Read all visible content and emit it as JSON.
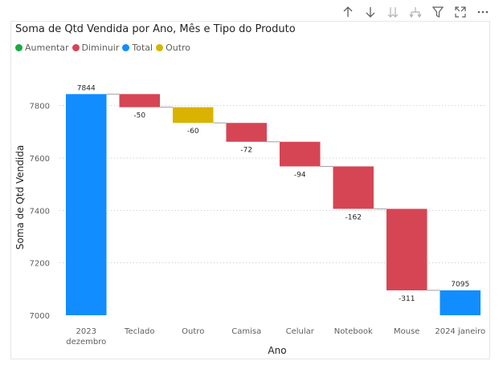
{
  "toolbar": {
    "icons": [
      "sort-up-icon",
      "sort-down-icon",
      "expand-all-down-icon",
      "drill-down-icon",
      "filter-icon",
      "focus-mode-icon",
      "more-options-icon"
    ]
  },
  "colors": {
    "increase": "#1aab40",
    "decrease": "#d64554",
    "total": "#118dff",
    "other": "#d9b300"
  },
  "chart_data": {
    "type": "waterfall",
    "title": "Soma de Qtd Vendida por Ano, Mês e Tipo do Produto",
    "xlabel": "Ano",
    "ylabel": "Soma de Qtd Vendida",
    "ylim": [
      7000,
      7900
    ],
    "yticks": [
      "7000",
      "7200",
      "7400",
      "7600",
      "7800"
    ],
    "grid": true,
    "legend_position": "top-left",
    "legend": [
      {
        "label": "Aumentar",
        "kind": "increase"
      },
      {
        "label": "Diminuir",
        "kind": "decrease"
      },
      {
        "label": "Total",
        "kind": "total"
      },
      {
        "label": "Outro",
        "kind": "other"
      }
    ],
    "categories": [
      "2023 dezembro",
      "Teclado",
      "Outro",
      "Camisa",
      "Celular",
      "Notebook",
      "Mouse",
      "2024 janeiro"
    ],
    "values": [
      7844,
      -50,
      -60,
      -72,
      -94,
      -162,
      -311,
      7095
    ],
    "labels": [
      "7844",
      "-50",
      "-60",
      "-72",
      "-94",
      "-162",
      "-311",
      "7095"
    ],
    "kinds": [
      "total",
      "decrease",
      "other",
      "decrease",
      "decrease",
      "decrease",
      "decrease",
      "total"
    ]
  }
}
